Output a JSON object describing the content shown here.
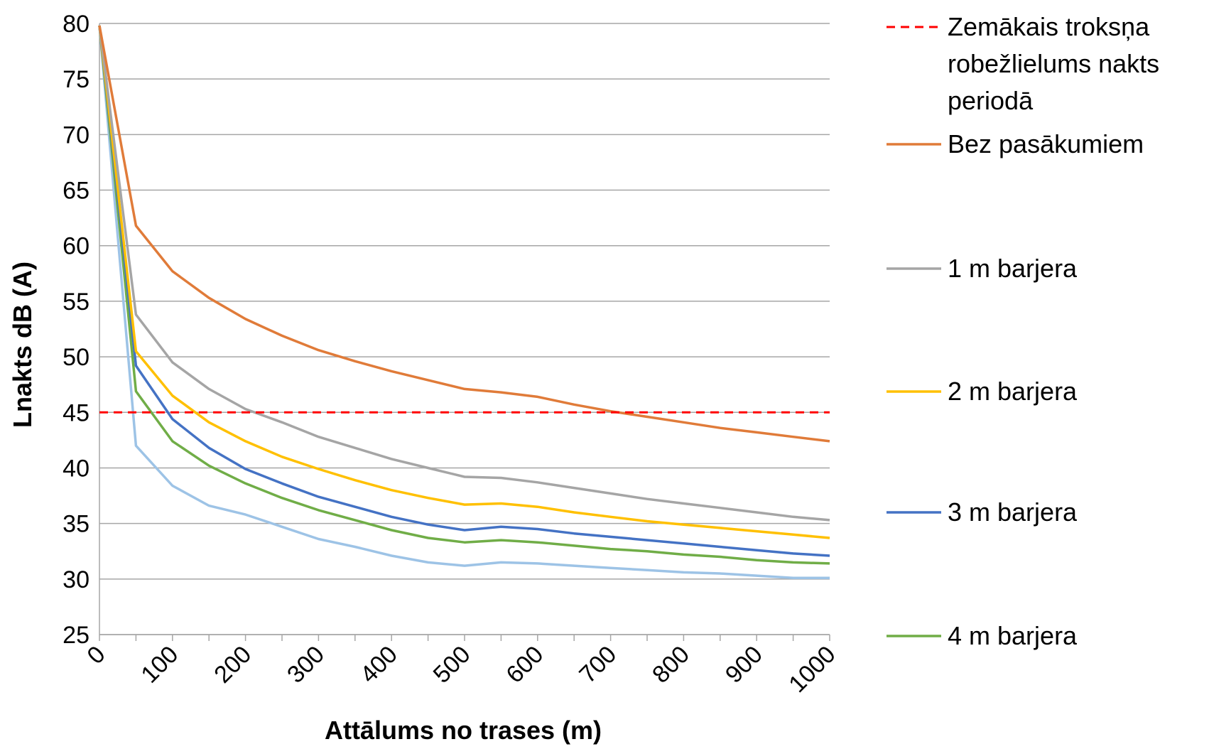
{
  "chart_data": {
    "type": "line",
    "xlabel": "Attālums no trases (m)",
    "ylabel": "Lnakts dB (A)",
    "ylim": [
      25,
      80
    ],
    "yticks": [
      25,
      30,
      35,
      40,
      45,
      50,
      55,
      60,
      65,
      70,
      75,
      80
    ],
    "xlim": [
      0,
      1000
    ],
    "xtick_labels": [
      "0",
      "100",
      "200",
      "300",
      "400",
      "500",
      "600",
      "700",
      "800",
      "900",
      "1000"
    ],
    "x": [
      0,
      50,
      100,
      150,
      200,
      250,
      300,
      350,
      400,
      450,
      500,
      550,
      600,
      650,
      700,
      750,
      800,
      850,
      900,
      950,
      1000
    ],
    "grid": "horizontal",
    "legend_position": "right",
    "series": [
      {
        "name": "Zemākais troksņa robežlielums nakts periodā",
        "color": "#FF0000",
        "dash": true,
        "values": [
          45,
          45,
          45,
          45,
          45,
          45,
          45,
          45,
          45,
          45,
          45,
          45,
          45,
          45,
          45,
          45,
          45,
          45,
          45,
          45,
          45
        ]
      },
      {
        "name": "Bez pasākumiem",
        "color": "#E07B39",
        "dash": false,
        "values": [
          79.8,
          61.8,
          57.7,
          55.3,
          53.4,
          51.9,
          50.6,
          49.6,
          48.7,
          47.9,
          47.1,
          46.8,
          46.4,
          45.7,
          45.1,
          44.6,
          44.1,
          43.6,
          43.2,
          42.8,
          42.4
        ]
      },
      {
        "name": "1 m barjera",
        "color": "#A5A5A5",
        "dash": false,
        "values": [
          79.8,
          53.8,
          49.5,
          47.1,
          45.3,
          44.1,
          42.8,
          41.8,
          40.8,
          40.0,
          39.2,
          39.1,
          38.7,
          38.2,
          37.7,
          37.2,
          36.8,
          36.4,
          36.0,
          35.6,
          35.3
        ]
      },
      {
        "name": "2 m barjera",
        "color": "#FFC000",
        "dash": false,
        "values": [
          79.8,
          50.5,
          46.5,
          44.1,
          42.4,
          41.0,
          39.9,
          38.9,
          38.0,
          37.3,
          36.7,
          36.8,
          36.5,
          36.0,
          35.6,
          35.2,
          34.9,
          34.6,
          34.3,
          34.0,
          33.7
        ]
      },
      {
        "name": "3 m barjera",
        "color": "#4472C4",
        "dash": false,
        "values": [
          79.8,
          49.2,
          44.4,
          41.8,
          39.9,
          38.6,
          37.4,
          36.5,
          35.6,
          34.9,
          34.4,
          34.7,
          34.5,
          34.1,
          33.8,
          33.5,
          33.2,
          32.9,
          32.6,
          32.3,
          32.1
        ]
      },
      {
        "name": "4 m barjera",
        "color": "#70AD47",
        "dash": false,
        "values": [
          79.8,
          46.9,
          42.4,
          40.2,
          38.6,
          37.3,
          36.2,
          35.3,
          34.4,
          33.7,
          33.3,
          33.5,
          33.3,
          33.0,
          32.7,
          32.5,
          32.2,
          32.0,
          31.7,
          31.5,
          31.4
        ]
      },
      {
        "name": "",
        "color": "#9DC3E6",
        "dash": false,
        "values": [
          79.8,
          42.0,
          38.4,
          36.6,
          35.8,
          34.7,
          33.6,
          32.9,
          32.1,
          31.5,
          31.2,
          31.5,
          31.4,
          31.2,
          31.0,
          30.8,
          30.6,
          30.5,
          30.3,
          30.1,
          30.1
        ]
      }
    ],
    "legend": [
      {
        "lines": [
          "Zemākais troksņa",
          "robežlielums nakts",
          "periodā"
        ],
        "series": 0
      },
      {
        "lines": [
          "Bez pasākumiem"
        ],
        "series": 1
      },
      {
        "lines": [
          "1 m barjera"
        ],
        "series": 2
      },
      {
        "lines": [
          "2 m barjera"
        ],
        "series": 3
      },
      {
        "lines": [
          "3 m barjera"
        ],
        "series": 4
      },
      {
        "lines": [
          "4 m barjera"
        ],
        "series": 5
      }
    ]
  }
}
